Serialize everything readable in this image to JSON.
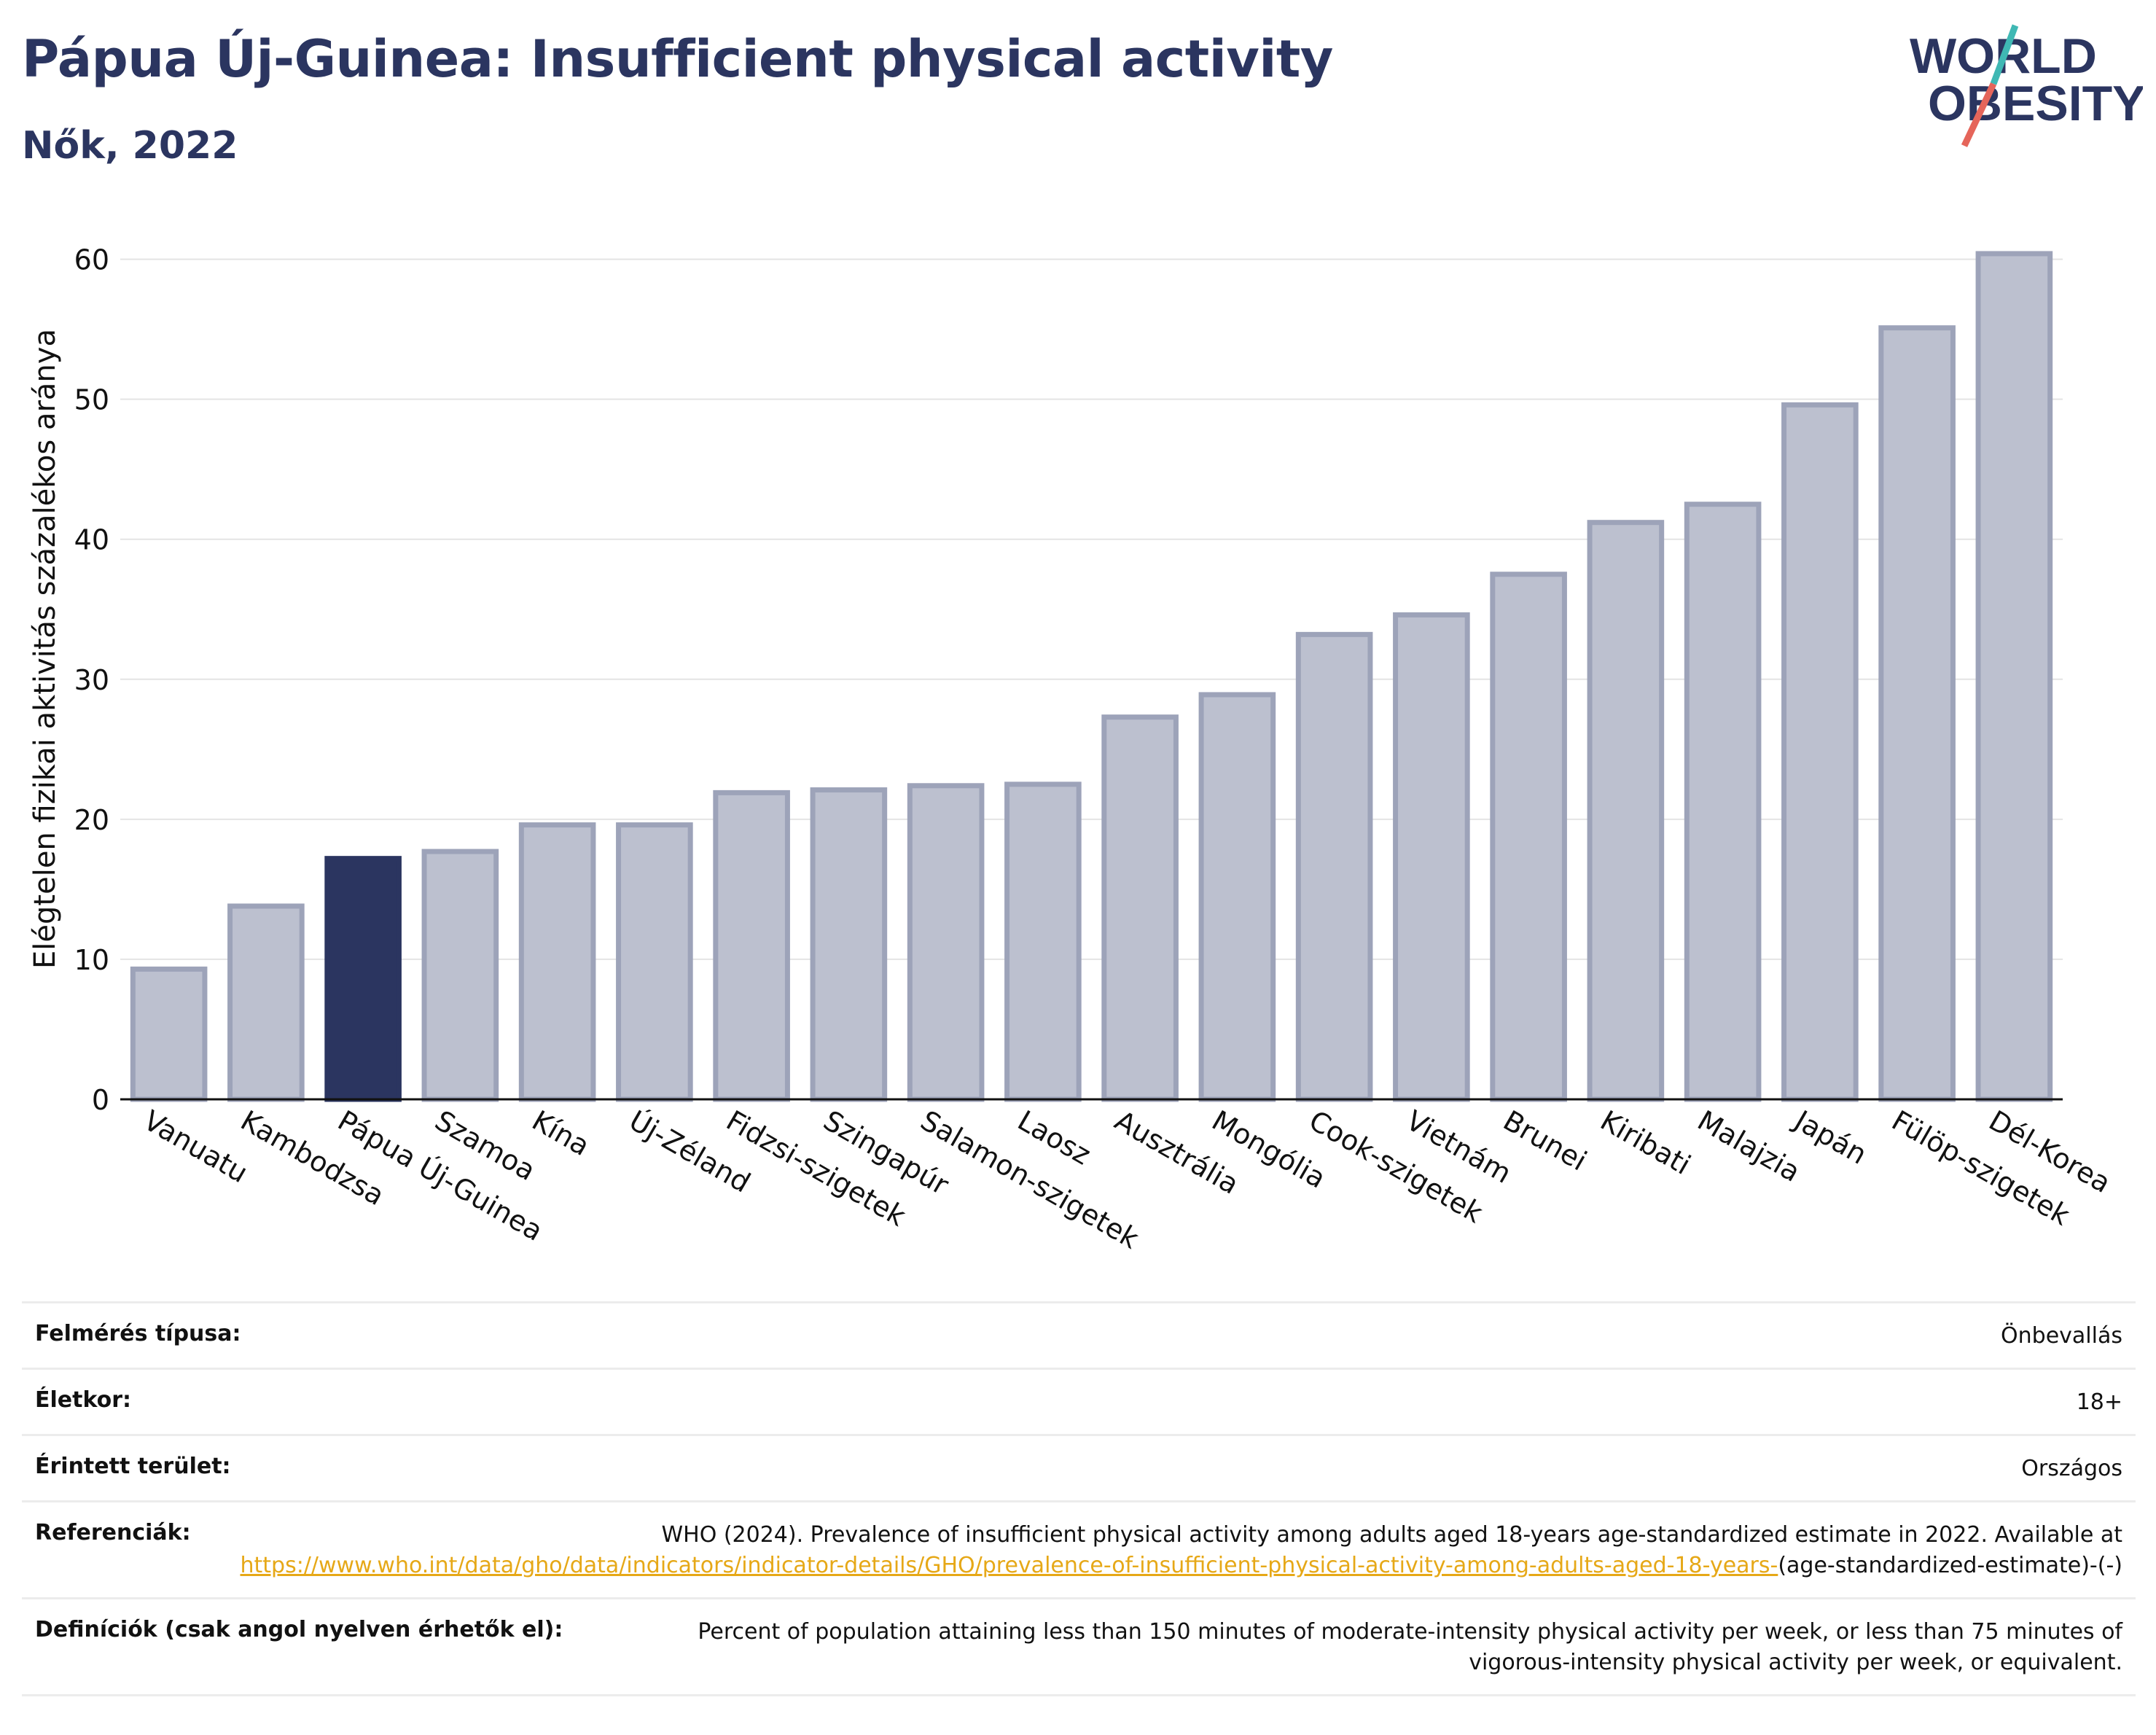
{
  "header": {
    "title": "Pápua Új-Guinea: Insufficient physical activity",
    "subtitle": "Nők, 2022"
  },
  "logo": {
    "line1": "WORLD",
    "line2": "OBESITY"
  },
  "colors": {
    "title": "#2b3560",
    "bar": "#bcc0cf",
    "bar_stroke": "#9da3b9",
    "highlight": "#2b3560",
    "link": "#e6a817"
  },
  "chart_data": {
    "type": "bar",
    "ylabel": "Elégtelen fizikai aktivitás százalékos aránya",
    "categories": [
      "Vanuatu",
      "Kambodzsa",
      "Pápua Új-Guinea",
      "Szamoa",
      "Kína",
      "Új-Zéland",
      "Fidzsi-szigetek",
      "Szingapúr",
      "Salamon-szigetek",
      "Laosz",
      "Ausztrália",
      "Mongólia",
      "Cook-szigetek",
      "Vietnám",
      "Brunei",
      "Kiribati",
      "Malajzia",
      "Japán",
      "Fülöp-szigetek",
      "Dél-Korea"
    ],
    "values": [
      9.3,
      13.8,
      17.2,
      17.7,
      19.6,
      19.6,
      21.9,
      22.1,
      22.4,
      22.5,
      27.3,
      28.9,
      33.2,
      34.6,
      37.5,
      41.2,
      42.5,
      49.6,
      55.1,
      60.4
    ],
    "highlight": "Pápua Új-Guinea",
    "ylim": [
      0,
      63
    ],
    "yticks": [
      0,
      10,
      20,
      30,
      40,
      50,
      60
    ],
    "grid": true
  },
  "meta": [
    {
      "key": "Felmérés típusa:",
      "value": "Önbevallás"
    },
    {
      "key": "Életkor:",
      "value": "18+"
    },
    {
      "key": "Érintett terület:",
      "value": "Országos"
    },
    {
      "key": "Referenciák:",
      "value_prefix": "WHO (2024). Prevalence of insufficient physical activity among adults aged 18-years age-standardized estimate in 2022. Available at",
      "link": "https://www.who.int/data/gho/data/indicators/indicator-details/GHO/prevalence-of-insufficient-physical-activity-among-adults-aged-18-years-",
      "value_suffix": "(age-standardized-estimate)-(-)"
    },
    {
      "key": "Definíciók (csak angol nyelven érhetők el):",
      "value": "Percent of population attaining less than 150 minutes of moderate-intensity physical activity per week, or less than 75 minutes of vigorous-intensity physical activity per week, or equivalent."
    }
  ]
}
